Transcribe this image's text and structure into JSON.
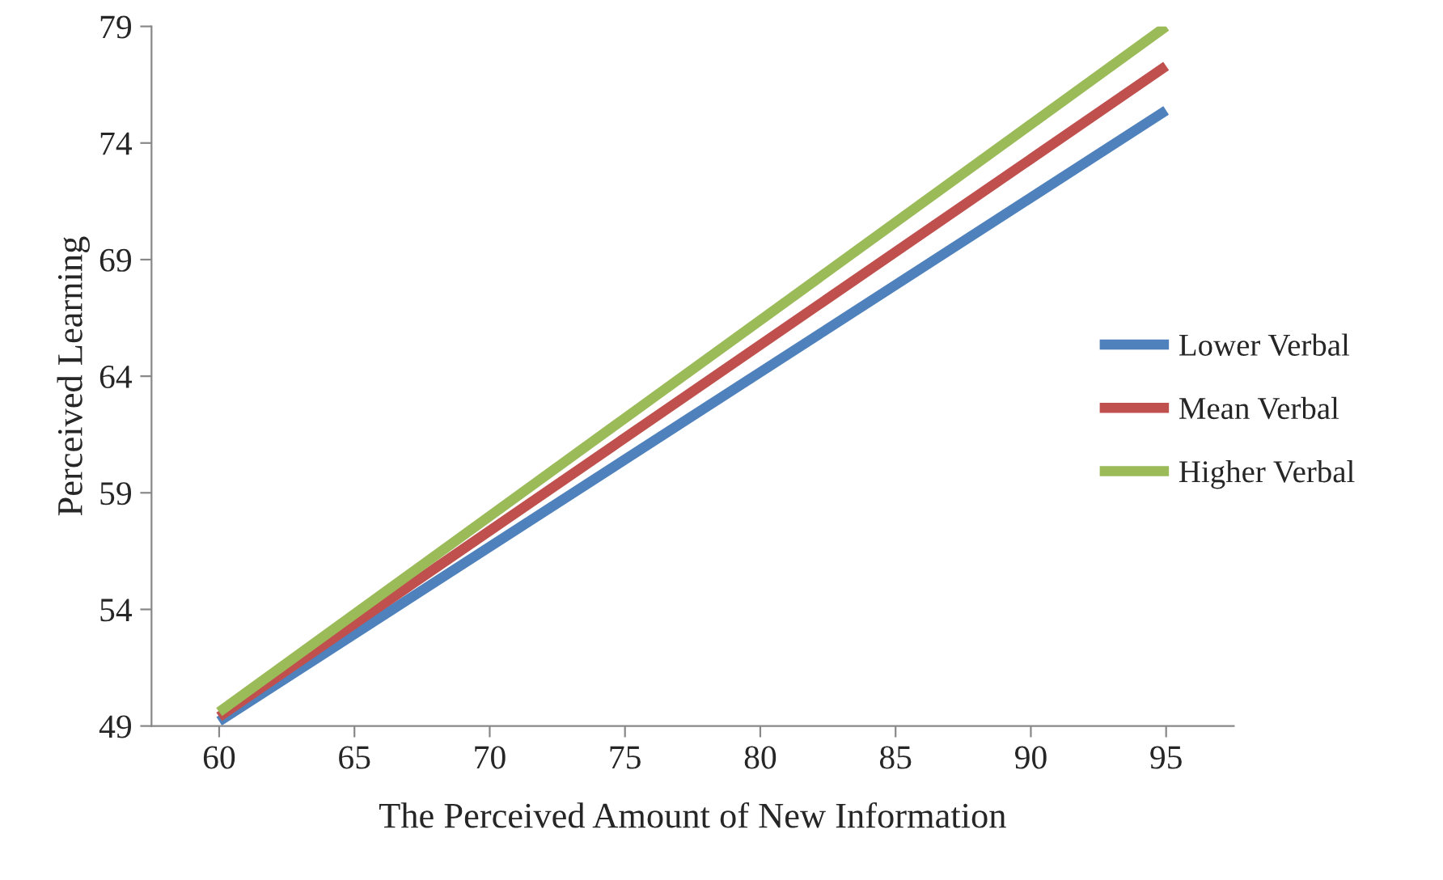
{
  "chart_data": {
    "type": "line",
    "xlabel": "The Perceived Amount of New Information",
    "ylabel": "Perceived Learning",
    "x": [
      60,
      95
    ],
    "xlim": [
      57.5,
      97.5
    ],
    "xticks": [
      60,
      65,
      70,
      75,
      80,
      85,
      90,
      95
    ],
    "ylim": [
      49,
      79
    ],
    "yticks": [
      49,
      54,
      59,
      64,
      69,
      74,
      79
    ],
    "grid": false,
    "legend": "right",
    "marker": "none",
    "line_style": "solid",
    "series": [
      {
        "name": "Lower Verbal",
        "color": "#4f81bd",
        "values": [
          49.2,
          75.4
        ]
      },
      {
        "name": "Mean Verbal",
        "color": "#c0504d",
        "values": [
          49.4,
          77.3
        ]
      },
      {
        "name": "Higher Verbal",
        "color": "#9bbb59",
        "values": [
          49.6,
          79.0
        ]
      }
    ]
  }
}
